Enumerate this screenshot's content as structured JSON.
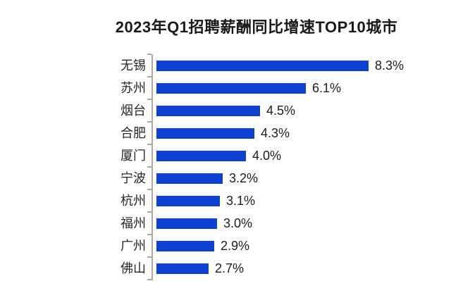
{
  "title": "2023年Q1招聘薪酬同比增速TOP10城市",
  "chart_data": {
    "type": "bar",
    "orientation": "horizontal",
    "title": "2023年Q1招聘薪酬同比增速TOP10城市",
    "categories": [
      "无锡",
      "苏州",
      "烟台",
      "合肥",
      "厦门",
      "宁波",
      "杭州",
      "福州",
      "广州",
      "佛山"
    ],
    "values": [
      8.3,
      6.1,
      4.5,
      4.3,
      4.0,
      3.2,
      3.1,
      3.0,
      2.9,
      2.7
    ],
    "value_labels": [
      "8.3%",
      "6.1%",
      "4.5%",
      "4.3%",
      "4.0%",
      "3.2%",
      "3.1%",
      "3.0%",
      "2.9%",
      "2.7%"
    ],
    "xlabel": "",
    "ylabel": "",
    "xlim": [
      0.87,
      9.3
    ],
    "grid": false,
    "legend": null,
    "unit": "%",
    "colors": {
      "bar": "#0D42D1",
      "axis": "#A9A9A9",
      "title_text": "#1A1A1A",
      "label_text": "#262626",
      "background": "#FFFFFF"
    }
  }
}
